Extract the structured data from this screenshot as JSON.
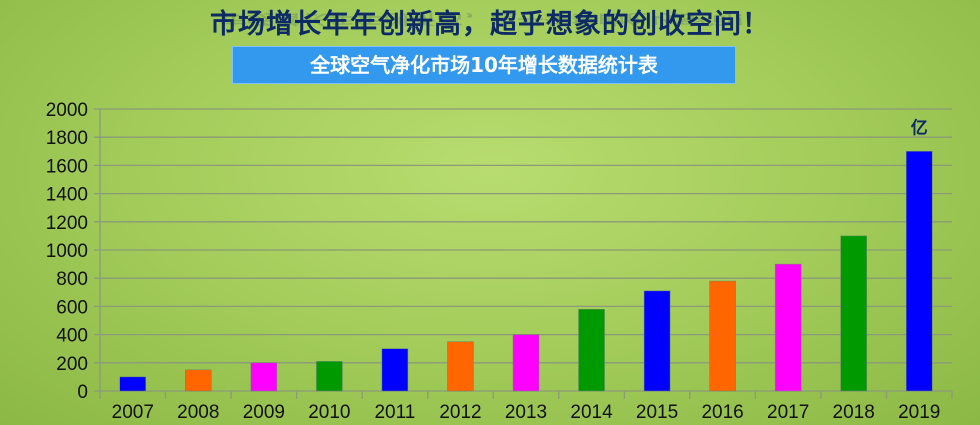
{
  "header": {
    "headline": "市场增长年年创新高，超乎想象的创收空间！",
    "subtitle": "全球空气净化市场10年增长数据统计表"
  },
  "chart_data": {
    "type": "bar",
    "title": "全球空气净化市场10年增长数据统计表",
    "categories": [
      "2007",
      "2008",
      "2009",
      "2010",
      "2011",
      "2012",
      "2013",
      "2014",
      "2015",
      "2016",
      "2017",
      "2018",
      "2019"
    ],
    "values": [
      100,
      150,
      200,
      210,
      300,
      350,
      400,
      580,
      710,
      780,
      900,
      1100,
      1700
    ],
    "colors": [
      "#0000ff",
      "#ff6600",
      "#ff00ff",
      "#009900",
      "#0000ff",
      "#ff6600",
      "#ff00ff",
      "#009900",
      "#0000ff",
      "#ff6600",
      "#ff00ff",
      "#009900",
      "#0000ff"
    ],
    "ylim": [
      0,
      2000
    ],
    "yticks": [
      "0",
      "200",
      "400",
      "600",
      "800",
      "1000",
      "1200",
      "1400",
      "1600",
      "1800",
      "2000"
    ],
    "unit_label": "亿",
    "grid": true,
    "xlabel": "",
    "ylabel": ""
  }
}
